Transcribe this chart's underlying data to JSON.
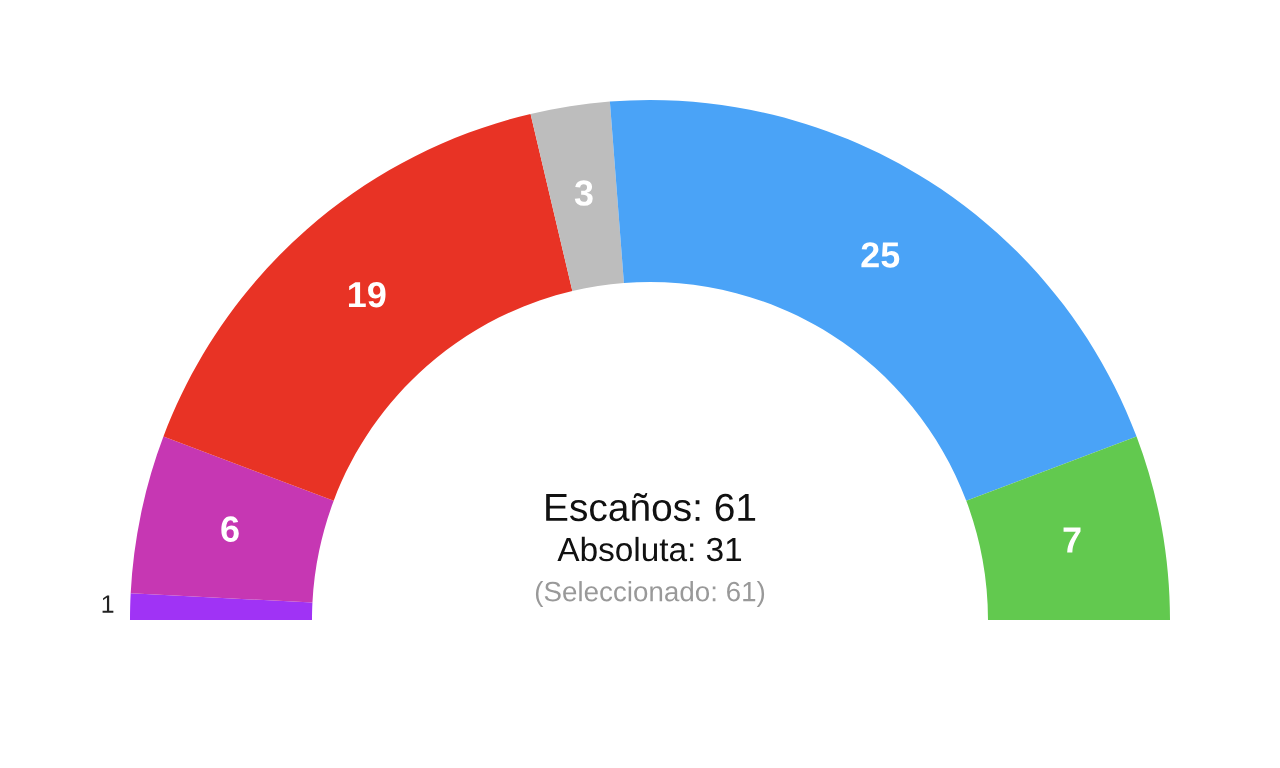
{
  "chart_data": {
    "type": "donut",
    "categories": [
      null,
      null,
      null,
      null,
      null,
      null
    ],
    "values": [
      1,
      6,
      19,
      3,
      25,
      7
    ],
    "colors": [
      "#a033f5",
      "#c637b3",
      "#e83325",
      "#bdbdbd",
      "#4aa3f7",
      "#62c94f"
    ],
    "data_labels": true,
    "annotations": [
      "Escaños: 61",
      "Absoluta: 31",
      "(Seleccionado: 61)"
    ]
  }
}
